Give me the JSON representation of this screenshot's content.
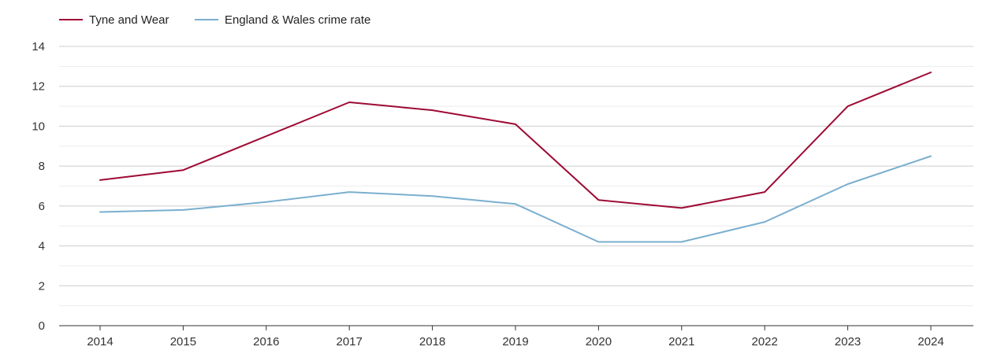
{
  "chart_data": {
    "type": "line",
    "categories": [
      "2014",
      "2015",
      "2016",
      "2017",
      "2018",
      "2019",
      "2020",
      "2021",
      "2022",
      "2023",
      "2024"
    ],
    "series": [
      {
        "name": "Tyne and Wear",
        "color": "#9e0a33",
        "values": [
          7.3,
          7.8,
          9.5,
          11.2,
          10.8,
          10.1,
          6.3,
          5.9,
          6.7,
          11.0,
          12.7
        ]
      },
      {
        "name": "England & Wales crime rate",
        "color": "#7aafcf",
        "values": [
          5.7,
          5.8,
          6.2,
          6.7,
          6.5,
          6.1,
          4.2,
          4.2,
          5.2,
          7.1,
          8.5
        ]
      }
    ],
    "title": "",
    "xlabel": "",
    "ylabel": "",
    "ylim": [
      0,
      14
    ],
    "yticks": [
      "0",
      "2",
      "4",
      "6",
      "8",
      "10",
      "12",
      "14"
    ],
    "grid": true,
    "legend": "top-left"
  }
}
